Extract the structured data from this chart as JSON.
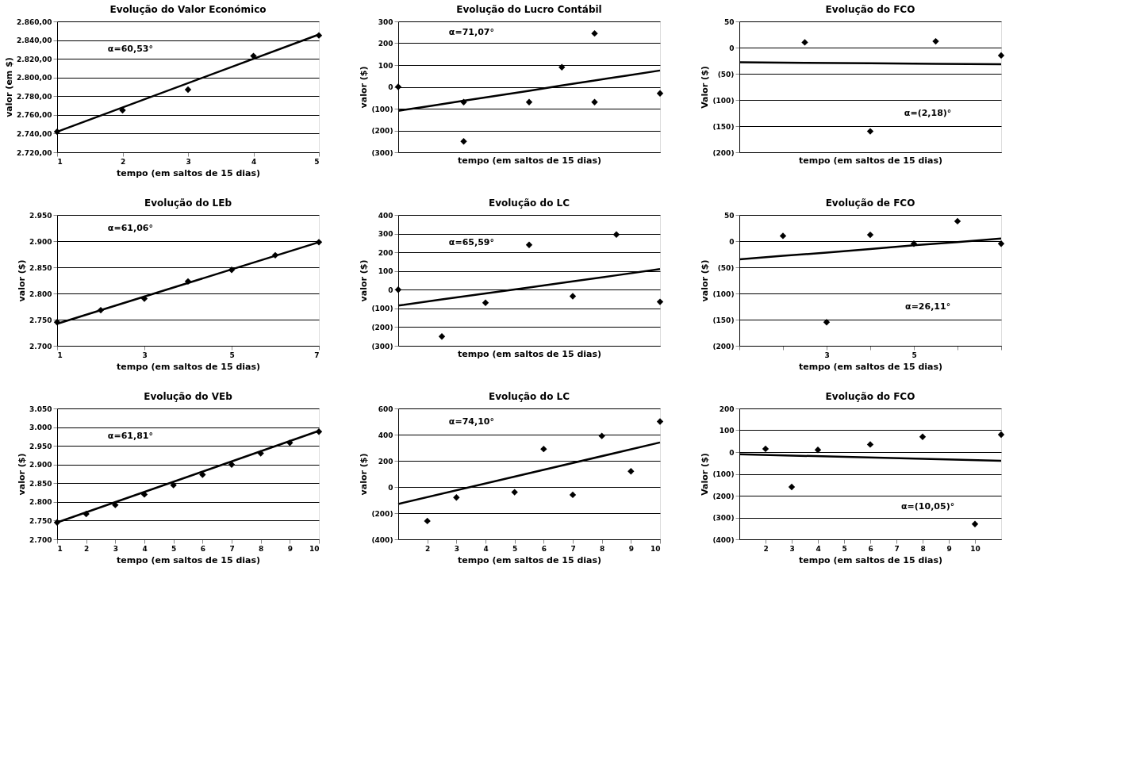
{
  "chart_data": [
    {
      "type": "scatter",
      "title": "Evolução do Valor Económico",
      "xlabel": "tempo (em saltos de 15 dias)",
      "ylabel": "valor (em $)",
      "xlim": [
        1,
        5
      ],
      "xticks": [
        1,
        2,
        3,
        4,
        5
      ],
      "ylim": [
        2720,
        2860
      ],
      "yticks": [
        {
          "value": 2720,
          "label": "2.720,00"
        },
        {
          "value": 2740,
          "label": "2.740,00"
        },
        {
          "value": 2760,
          "label": "2.760,00"
        },
        {
          "value": 2780,
          "label": "2.780,00"
        },
        {
          "value": 2800,
          "label": "2.800,00"
        },
        {
          "value": 2820,
          "label": "2.820,00"
        },
        {
          "value": 2840,
          "label": "2.840,00"
        },
        {
          "value": 2860,
          "label": "2.860,00"
        }
      ],
      "grid": "y",
      "marker": "diamond",
      "annotations": [
        "α=60,53°"
      ],
      "series": [
        {
          "color": "#000000",
          "x": [
            1,
            2,
            3,
            4,
            5
          ],
          "values": [
            2742,
            2765,
            2787,
            2823,
            2845
          ]
        },
        {
          "type": "line",
          "marker": "none",
          "color": "#000000",
          "x": [
            1,
            5
          ],
          "values": [
            2742,
            2846
          ]
        }
      ]
    },
    {
      "type": "scatter",
      "title": "Evolução do Lucro Contábil",
      "xlabel": "tempo (em saltos de 15 dias)",
      "ylabel": "valor ($)",
      "categories": [
        null,
        null,
        null,
        null,
        null,
        null,
        null,
        null,
        null
      ],
      "ylim": [
        -300,
        300
      ],
      "yticks": [
        {
          "value": -300,
          "label": "(300)"
        },
        {
          "value": -200,
          "label": "(200)"
        },
        {
          "value": -100,
          "label": "(100)"
        },
        0,
        100,
        200,
        300
      ],
      "tick_labels": "y",
      "grid": "y",
      "marker": "diamond",
      "annotations": [
        "α=71,07°"
      ],
      "series": [
        {
          "color": "#000000",
          "values": [
            0,
            null,
            -70,
            null,
            -70,
            90,
            245,
            null,
            -30
          ]
        },
        {
          "color": "#000000",
          "values": [
            null,
            null,
            -250,
            null,
            null,
            null,
            -70,
            null,
            null
          ]
        },
        {
          "type": "line",
          "marker": "none",
          "color": "#000000",
          "values": [
            -110,
            -87,
            -64,
            -41,
            -18,
            6,
            29,
            52,
            75
          ]
        }
      ]
    },
    {
      "type": "scatter",
      "title": "Evolução do FCO",
      "xlabel": "tempo (em saltos de 15 dias)",
      "ylabel": "Valor ($)",
      "categories": [
        null,
        null,
        null,
        null,
        null
      ],
      "ylim": [
        -200,
        50
      ],
      "yticks": [
        {
          "value": -200,
          "label": "(200)"
        },
        {
          "value": -150,
          "label": "(150)"
        },
        {
          "value": -100,
          "label": "(100)"
        },
        {
          "value": -50,
          "label": "(50)"
        },
        0,
        50
      ],
      "tick_labels": "y",
      "grid": "y",
      "marker": "diamond",
      "annotations": [
        "α=(2,18)°"
      ],
      "series": [
        {
          "color": "#000000",
          "values": [
            null,
            10,
            -160,
            12,
            -15
          ]
        },
        {
          "type": "line",
          "marker": "none",
          "color": "#000000",
          "values": [
            -28,
            -29,
            -30,
            -31,
            -32
          ]
        }
      ]
    },
    {
      "type": "scatter",
      "title": "Evolução do LEb",
      "xlabel": "tempo (em saltos de 15 dias)",
      "ylabel": "valor ($)",
      "xlim": [
        1,
        7
      ],
      "xticks": [
        1,
        3,
        5,
        7
      ],
      "ylim": [
        2700,
        2950
      ],
      "yticks": [
        {
          "value": 2700,
          "label": "2.700"
        },
        {
          "value": 2750,
          "label": "2.750"
        },
        {
          "value": 2800,
          "label": "2.800"
        },
        {
          "value": 2850,
          "label": "2.850"
        },
        {
          "value": 2900,
          "label": "2.900"
        },
        {
          "value": 2950,
          "label": "2.950"
        }
      ],
      "grid": "y",
      "marker": "diamond",
      "annotations": [
        "α=61,06°"
      ],
      "series": [
        {
          "color": "#000000",
          "x": [
            1,
            2,
            3,
            4,
            5,
            6,
            7
          ],
          "values": [
            2745,
            2768,
            2790,
            2823,
            2845,
            2873,
            2898
          ]
        },
        {
          "type": "line",
          "marker": "none",
          "color": "#000000",
          "x": [
            1,
            7
          ],
          "values": [
            2742,
            2898
          ]
        }
      ]
    },
    {
      "type": "scatter",
      "title": "Evolução do LC",
      "xlabel": "tempo (em saltos de 15 dias)",
      "ylabel": "valor ($)",
      "categories": [
        null,
        null,
        null,
        null,
        null,
        null,
        null
      ],
      "ylim": [
        -300,
        400
      ],
      "yticks": [
        {
          "value": -300,
          "label": "(300)"
        },
        {
          "value": -200,
          "label": "(200)"
        },
        {
          "value": -100,
          "label": "(100)"
        },
        0,
        100,
        200,
        300,
        400
      ],
      "tick_labels": "y",
      "grid": "y",
      "marker": "diamond",
      "annotations": [
        "α=65,59°"
      ],
      "series": [
        {
          "color": "#000000",
          "values": [
            0,
            -250,
            -70,
            240,
            -35,
            295,
            -65
          ]
        },
        {
          "type": "line",
          "marker": "none",
          "color": "#000000",
          "values": [
            -85,
            -52,
            -20,
            12,
            45,
            77,
            110
          ]
        }
      ]
    },
    {
      "type": "scatter",
      "title": "Evolução de FCO",
      "xlabel": "tempo (em saltos de 15 dias)",
      "ylabel": "valor ($)",
      "categories": [
        null,
        null,
        "3",
        null,
        "5",
        null,
        null
      ],
      "ylim": [
        -200,
        50
      ],
      "yticks": [
        {
          "value": -200,
          "label": "(200)"
        },
        {
          "value": -150,
          "label": "(150)"
        },
        {
          "value": -100,
          "label": "(100)"
        },
        {
          "value": -50,
          "label": "(50)"
        },
        0,
        50
      ],
      "grid": "y",
      "marker": "diamond",
      "annotations": [
        "α=26,11°"
      ],
      "series": [
        {
          "color": "#000000",
          "values": [
            null,
            10,
            -155,
            12,
            -5,
            38,
            -5
          ]
        },
        {
          "type": "line",
          "marker": "none",
          "color": "#000000",
          "values": [
            -35,
            -28,
            -22,
            -15,
            -8,
            -2,
            5
          ]
        }
      ]
    },
    {
      "type": "scatter",
      "title": "Evolução do VEb",
      "xlabel": "tempo (em saltos de 15 dias)",
      "ylabel": "valor ($)",
      "xlim": [
        1,
        10
      ],
      "xticks": [
        1,
        2,
        3,
        4,
        5,
        6,
        7,
        8,
        9,
        10
      ],
      "ylim": [
        2700,
        3050
      ],
      "yticks": [
        {
          "value": 2700,
          "label": "2.700"
        },
        {
          "value": 2750,
          "label": "2.750"
        },
        {
          "value": 2800,
          "label": "2.800"
        },
        {
          "value": 2850,
          "label": "2.850"
        },
        {
          "value": 2900,
          "label": "2.900"
        },
        {
          "value": 2950,
          "label": "2.950"
        },
        {
          "value": 3000,
          "label": "3.000"
        },
        {
          "value": 3050,
          "label": "3.050"
        }
      ],
      "grid": "y",
      "marker": "diamond",
      "annotations": [
        "α=61,81°"
      ],
      "series": [
        {
          "color": "#000000",
          "x": [
            1,
            2,
            3,
            4,
            5,
            6,
            7,
            8,
            9,
            10
          ],
          "values": [
            2745,
            2768,
            2792,
            2820,
            2845,
            2873,
            2900,
            2930,
            2958,
            2988
          ]
        },
        {
          "type": "line",
          "marker": "none",
          "color": "#000000",
          "x": [
            1,
            10
          ],
          "values": [
            2745,
            2990
          ]
        }
      ]
    },
    {
      "type": "scatter",
      "title": "Evolução do LC",
      "xlabel": "tempo (em saltos de 15 dias)",
      "ylabel": "valor ($)",
      "xlim": [
        1,
        10
      ],
      "xticks": [
        2,
        3,
        4,
        5,
        6,
        7,
        8,
        9,
        10
      ],
      "ylim": [
        -400,
        600
      ],
      "yticks": [
        {
          "value": -400,
          "label": "(400)"
        },
        {
          "value": -200,
          "label": "(200)"
        },
        0,
        200,
        400,
        600
      ],
      "grid": "y",
      "marker": "diamond",
      "annotations": [
        "α=74,10°"
      ],
      "series": [
        {
          "color": "#000000",
          "x": [
            2,
            3,
            5,
            6,
            7,
            8,
            9,
            10
          ],
          "values": [
            -260,
            -80,
            -40,
            290,
            -60,
            390,
            120,
            500
          ]
        },
        {
          "type": "line",
          "marker": "none",
          "color": "#000000",
          "x": [
            1,
            10
          ],
          "values": [
            -130,
            340
          ]
        }
      ]
    },
    {
      "type": "scatter",
      "title": "Evolução do FCO",
      "xlabel": "tempo (em saltos de 15 dias)",
      "ylabel": "Valor ($)",
      "xlim": [
        1,
        11
      ],
      "xticks": [
        2,
        3,
        4,
        5,
        6,
        7,
        8,
        9,
        10
      ],
      "ylim": [
        -400,
        200
      ],
      "yticks": [
        {
          "value": -400,
          "label": "(400)"
        },
        {
          "value": -300,
          "label": "(300)"
        },
        {
          "value": -200,
          "label": "(200)"
        },
        {
          "value": -100,
          "label": "(100)"
        },
        0,
        100,
        200
      ],
      "grid": "y",
      "marker": "diamond",
      "annotations": [
        "α=(10,05)°"
      ],
      "series": [
        {
          "color": "#000000",
          "x": [
            2,
            3,
            4,
            6,
            8,
            10,
            11
          ],
          "values": [
            15,
            -160,
            10,
            35,
            70,
            -330,
            80
          ]
        },
        {
          "type": "line",
          "marker": "none",
          "color": "#000000",
          "x": [
            1,
            11
          ],
          "values": [
            -10,
            -40
          ]
        }
      ]
    }
  ]
}
